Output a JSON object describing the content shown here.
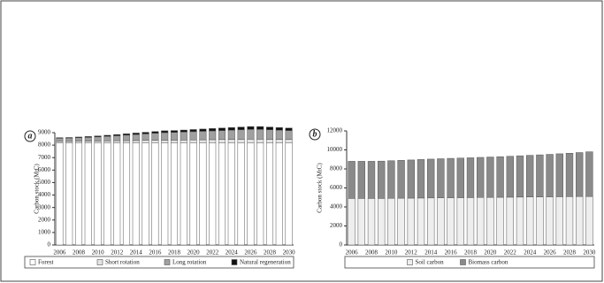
{
  "chart_data": [
    {
      "type": "stacked_bar",
      "panel_label": "a",
      "ylabel": "Carbon stock (MtC)",
      "categories": [
        "2006",
        null,
        "2008",
        null,
        "2010",
        null,
        "2012",
        null,
        "2014",
        null,
        "2016",
        null,
        "2018",
        null,
        "2020",
        null,
        "2022",
        null,
        "2024",
        null,
        "2026",
        null,
        "2028",
        null,
        "2030"
      ],
      "series": [
        {
          "name": "Forest",
          "color": "#ffffff",
          "values": [
            8200,
            8200,
            8200,
            8200,
            8200,
            8200,
            8200,
            8200,
            8200,
            8200,
            8200,
            8200,
            8200,
            8200,
            8200,
            8200,
            8200,
            8200,
            8200,
            8200,
            8200,
            8200,
            8200,
            8200,
            8200
          ]
        },
        {
          "name": "Short rotation",
          "color": "#e4e4e4",
          "values": [
            100,
            100,
            110,
            120,
            130,
            140,
            150,
            160,
            170,
            180,
            190,
            200,
            200,
            210,
            220,
            230,
            240,
            250,
            260,
            270,
            280,
            280,
            270,
            260,
            250
          ]
        },
        {
          "name": "Long rotation",
          "color": "#a0a0a0",
          "values": [
            250,
            260,
            280,
            300,
            330,
            360,
            400,
            440,
            480,
            520,
            560,
            600,
            620,
            640,
            660,
            680,
            700,
            720,
            740,
            760,
            780,
            780,
            760,
            740,
            720
          ]
        },
        {
          "name": "Natural regeneration",
          "color": "#111111",
          "values": [
            50,
            50,
            60,
            70,
            80,
            90,
            100,
            110,
            120,
            130,
            140,
            150,
            150,
            160,
            170,
            180,
            190,
            200,
            210,
            220,
            230,
            230,
            220,
            210,
            200
          ]
        }
      ],
      "ylim": [
        0,
        9000
      ],
      "yticks": [
        0,
        1000,
        2000,
        3000,
        4000,
        5000,
        6000,
        7000,
        8000,
        9000
      ]
    },
    {
      "type": "stacked_bar",
      "panel_label": "b",
      "ylabel": "Carbon stock (MtC)",
      "categories": [
        "2006",
        null,
        "2008",
        null,
        "2010",
        null,
        "2012",
        null,
        "2014",
        null,
        "2016",
        null,
        "2018",
        null,
        "2020",
        null,
        "2022",
        null,
        "2024",
        null,
        "2026",
        null,
        "2028",
        null,
        "2030"
      ],
      "series": [
        {
          "name": "Soil carbon",
          "color": "#eeeeee",
          "values": [
            4900,
            4900,
            4900,
            4900,
            4910,
            4920,
            4930,
            4940,
            4950,
            4960,
            4970,
            4980,
            4990,
            5000,
            5010,
            5020,
            5030,
            5040,
            5050,
            5060,
            5070,
            5080,
            5090,
            5100,
            5100
          ]
        },
        {
          "name": "Biomass carbon",
          "color": "#8a8a8a",
          "values": [
            3900,
            3900,
            3900,
            3920,
            3950,
            3980,
            4010,
            4050,
            4080,
            4110,
            4140,
            4160,
            4180,
            4210,
            4240,
            4270,
            4300,
            4340,
            4380,
            4420,
            4460,
            4510,
            4560,
            4620,
            4700
          ]
        }
      ],
      "ylim": [
        0,
        12000
      ],
      "yticks": [
        0,
        2000,
        4000,
        6000,
        8000,
        10000,
        12000
      ]
    }
  ]
}
